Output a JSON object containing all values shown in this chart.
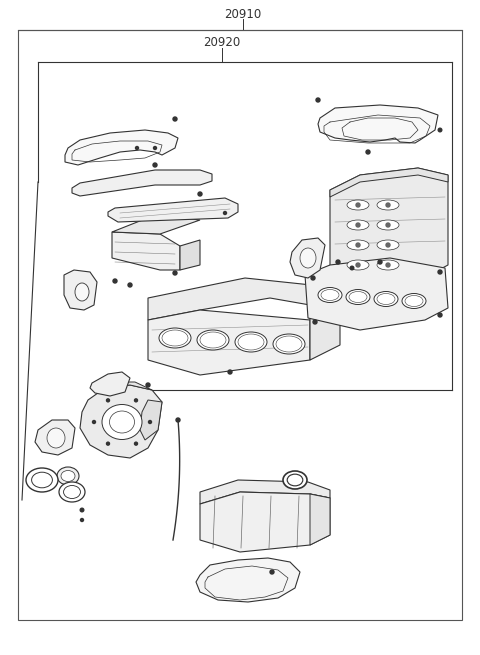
{
  "label_20910": "20910",
  "label_20920": "20920",
  "bg_color": "#ffffff",
  "line_color": "#333333",
  "border_color": "#555555",
  "text_color": "#333333",
  "fig_width": 4.8,
  "fig_height": 6.55,
  "dpi": 100
}
